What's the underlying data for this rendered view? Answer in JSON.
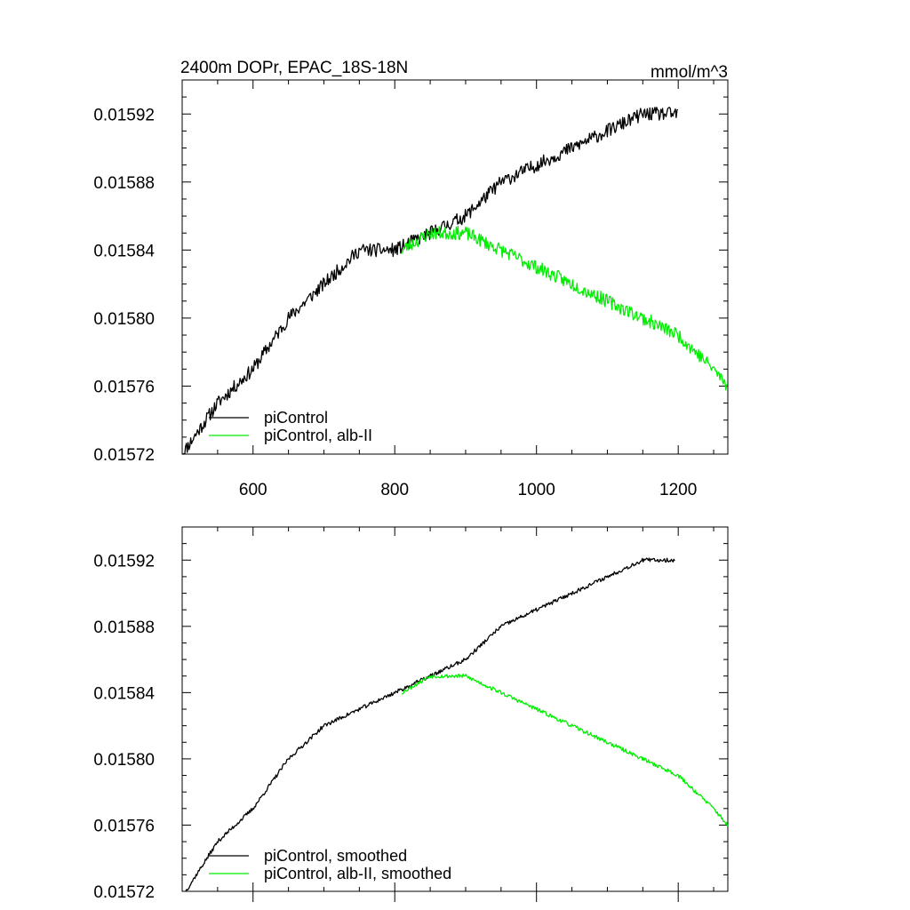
{
  "chart_data": [
    {
      "type": "line",
      "title": "2400m DOPr, EPAC_18S-18N",
      "units": "mmol/m^3",
      "xlim": [
        500,
        1270
      ],
      "ylim": [
        0.01572,
        0.01594
      ],
      "xticks": [
        600,
        800,
        1000,
        1200
      ],
      "xtick_labels": [
        "600",
        "800",
        "1000",
        "1200"
      ],
      "yticks": [
        0.01572,
        0.01576,
        0.0158,
        0.01584,
        0.01588,
        0.01592
      ],
      "ytick_labels": [
        "0.01572",
        "0.01576",
        "0.01580",
        "0.01584",
        "0.01588",
        "0.01592"
      ],
      "legend_position": "bottom-left",
      "series": [
        {
          "name": "piControl",
          "color": "#000000",
          "noise": 4e-06,
          "seed": 11,
          "x": [
            500,
            550,
            600,
            650,
            700,
            750,
            800,
            850,
            900,
            950,
            1000,
            1050,
            1100,
            1150,
            1200
          ],
          "values": [
            0.01572,
            0.01575,
            0.01577,
            0.0158,
            0.01582,
            0.01584,
            0.01584,
            0.01585,
            0.01586,
            0.01588,
            0.01589,
            0.0159,
            0.01591,
            0.01592,
            0.01592
          ]
        },
        {
          "name": "piControl, alb-II",
          "color": "#00ee00",
          "noise": 4e-06,
          "seed": 23,
          "x": [
            810,
            850,
            900,
            950,
            1000,
            1050,
            1100,
            1150,
            1200,
            1250,
            1270
          ],
          "values": [
            0.01584,
            0.01585,
            0.01585,
            0.01584,
            0.01583,
            0.01582,
            0.01581,
            0.0158,
            0.01579,
            0.01577,
            0.01576
          ]
        }
      ]
    },
    {
      "type": "line",
      "xlim": [
        500,
        1270
      ],
      "ylim": [
        0.01572,
        0.01594
      ],
      "xticks": [
        600,
        800,
        1000,
        1200
      ],
      "yticks": [
        0.01572,
        0.01576,
        0.0158,
        0.01584,
        0.01588,
        0.01592
      ],
      "ytick_labels": [
        "0.01572",
        "0.01576",
        "0.01580",
        "0.01584",
        "0.01588",
        "0.01592"
      ],
      "legend_position": "bottom-left",
      "series": [
        {
          "name": "piControl, smoothed",
          "color": "#000000",
          "noise": 1.2e-06,
          "seed": 37,
          "x": [
            505,
            550,
            600,
            650,
            700,
            750,
            800,
            850,
            900,
            950,
            1000,
            1050,
            1100,
            1150,
            1195
          ],
          "values": [
            0.01572,
            0.01575,
            0.01577,
            0.0158,
            0.01582,
            0.01583,
            0.01584,
            0.01585,
            0.01586,
            0.01588,
            0.01589,
            0.0159,
            0.01591,
            0.01592,
            0.01592
          ]
        },
        {
          "name": "piControl, alb-II, smoothed",
          "color": "#00ee00",
          "noise": 1.2e-06,
          "seed": 53,
          "x": [
            810,
            850,
            875,
            900,
            950,
            1000,
            1050,
            1100,
            1150,
            1200,
            1250,
            1270
          ],
          "values": [
            0.01584,
            0.01585,
            0.01585,
            0.01585,
            0.01584,
            0.01583,
            0.01582,
            0.01581,
            0.0158,
            0.01579,
            0.01577,
            0.01576
          ]
        }
      ]
    }
  ]
}
